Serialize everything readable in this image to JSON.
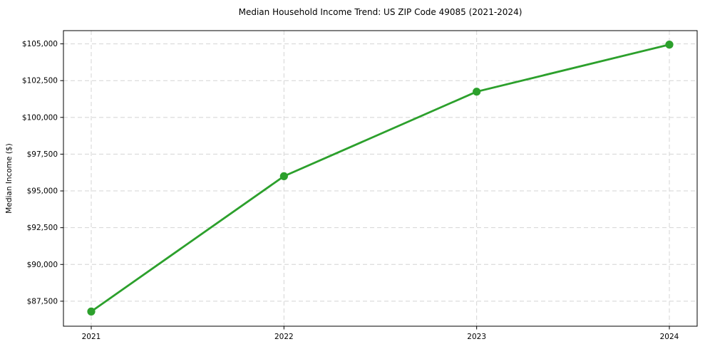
{
  "chart_data": {
    "type": "line",
    "title": "Median Household Income Trend: US ZIP Code 49085 (2021-2024)",
    "xlabel": "",
    "ylabel": "Median Income ($)",
    "categories": [
      "2021",
      "2022",
      "2023",
      "2024"
    ],
    "values": [
      86800,
      96000,
      101750,
      104950
    ],
    "ylim": [
      85800,
      105900
    ],
    "yticks": [
      87500,
      90000,
      92500,
      95000,
      97500,
      100000,
      102500,
      105000
    ],
    "ytick_labels": [
      "$87,500",
      "$90,000",
      "$92,500",
      "$95,000",
      "$97,500",
      "$100,000",
      "$102,500",
      "$105,000"
    ],
    "grid": true,
    "grid_style": "dashed",
    "legend_position": "none",
    "marker": "circle",
    "colors": {
      "line": "#2ca02c",
      "marker": "#2ca02c",
      "grid": "#d4d4d4",
      "axis": "#000000",
      "text": "#000000",
      "background": "#ffffff"
    }
  }
}
